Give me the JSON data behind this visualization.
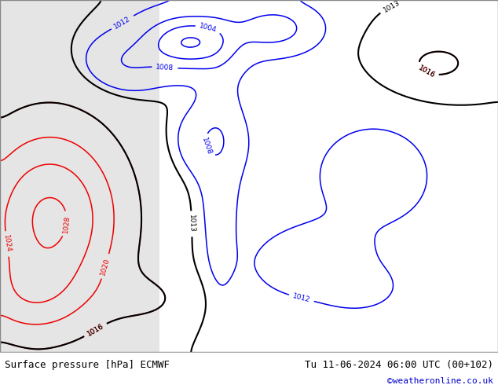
{
  "title_left": "Surface pressure [hPa] ECMWF",
  "title_right": "Tu 11-06-2024 06:00 UTC (00+102)",
  "credit": "©weatheronline.co.uk",
  "fig_width": 6.34,
  "fig_height": 4.9,
  "dpi": 100,
  "title_fontsize": 9,
  "credit_color": "#0000cc",
  "credit_fontsize": 8,
  "map_bg_color": "#c8dfc8",
  "atlantic_color": "#d8d8d8",
  "land_color": "#b0d0b0",
  "bottom_bar_color": "#f0f0f0"
}
